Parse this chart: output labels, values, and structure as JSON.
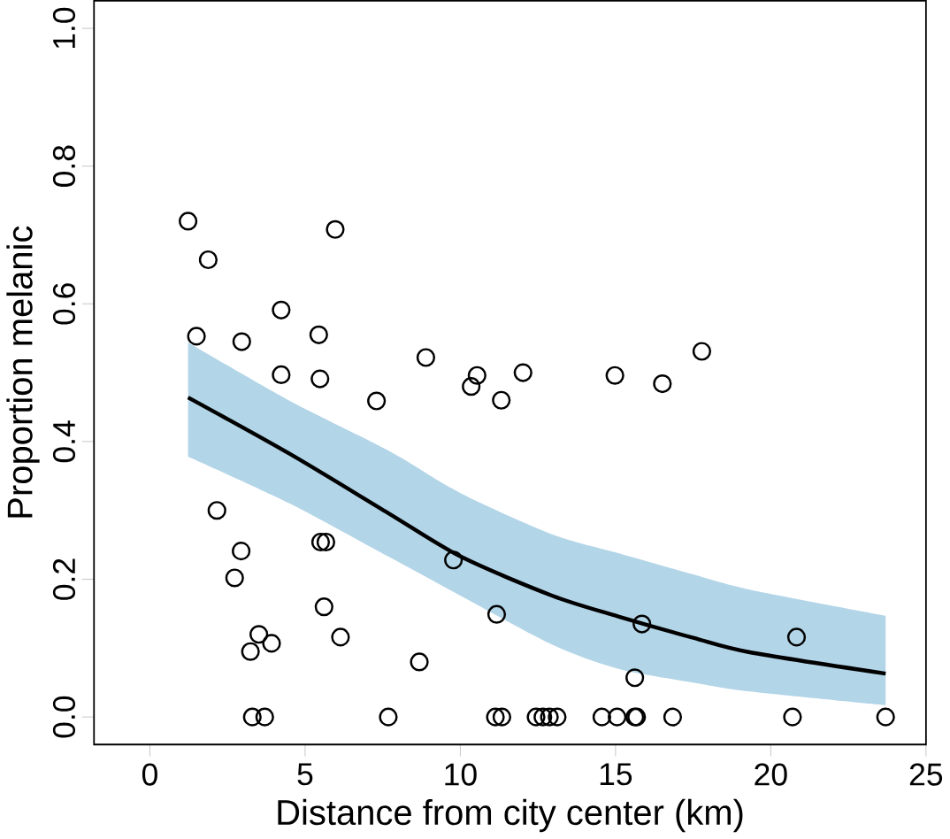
{
  "chart_data": {
    "type": "scatter",
    "xlabel": "Distance from city center (km)",
    "ylabel": "Proportion melanic",
    "xlim": [
      -1.8,
      25
    ],
    "ylim": [
      -0.04,
      1.04
    ],
    "xticks": [
      0,
      5,
      10,
      15,
      20,
      25
    ],
    "yticks": [
      {
        "value": 0,
        "label": "0.0"
      },
      {
        "value": 0.2,
        "label": "0.2"
      },
      {
        "value": 0.4,
        "label": "0.4"
      },
      {
        "value": 0.6,
        "label": "0.6"
      },
      {
        "value": 0.8,
        "label": "0.8"
      },
      {
        "value": 1,
        "label": "1.0"
      }
    ],
    "grid": false,
    "series": [
      {
        "type": "line",
        "color": "#000000",
        "marker": "none",
        "line_style": "solid",
        "x": [
          1.23,
          4.51,
          7.68,
          10.01,
          12.97,
          15.09,
          17.5,
          19.32,
          23.7
        ],
        "values": [
          0.464,
          0.382,
          0.296,
          0.233,
          0.176,
          0.146,
          0.115,
          0.094,
          0.063
        ],
        "lower": [
          0.378,
          0.31,
          0.233,
          0.176,
          0.105,
          0.07,
          0.05,
          0.037,
          0.017
        ],
        "upper": [
          0.544,
          0.459,
          0.387,
          0.325,
          0.265,
          0.238,
          0.207,
          0.185,
          0.147
        ]
      },
      {
        "color": "#000000",
        "marker": "circle",
        "x": [
          1.23,
          1.88,
          5.97,
          1.5,
          2.96,
          4.23,
          5.44,
          4.23,
          5.48,
          7.3,
          8.89,
          10.35,
          10.54,
          11.32,
          12.02,
          14.98,
          16.51,
          17.78,
          2.16,
          2.94,
          2.73,
          5.5,
          5.67,
          5.61,
          3.51,
          3.24,
          3.92,
          6.14,
          8.68,
          9.78,
          11.17,
          15.85,
          15.62,
          20.83,
          3.3,
          3.7,
          7.68,
          11.13,
          11.34,
          12.44,
          12.66,
          12.87,
          13.12,
          14.56,
          15.05,
          15.62,
          15.68,
          16.84,
          20.7,
          23.7
        ],
        "values": [
          0.72,
          0.664,
          0.708,
          0.553,
          0.545,
          0.591,
          0.555,
          0.497,
          0.491,
          0.459,
          0.522,
          0.48,
          0.496,
          0.46,
          0.5,
          0.496,
          0.484,
          0.531,
          0.3,
          0.241,
          0.202,
          0.254,
          0.254,
          0.16,
          0.12,
          0.095,
          0.107,
          0.116,
          0.08,
          0.228,
          0.149,
          0.135,
          0.057,
          0.116,
          0,
          0,
          0,
          0,
          0,
          0,
          0,
          0,
          0,
          0,
          0,
          0,
          0,
          0,
          0,
          0
        ]
      }
    ]
  }
}
